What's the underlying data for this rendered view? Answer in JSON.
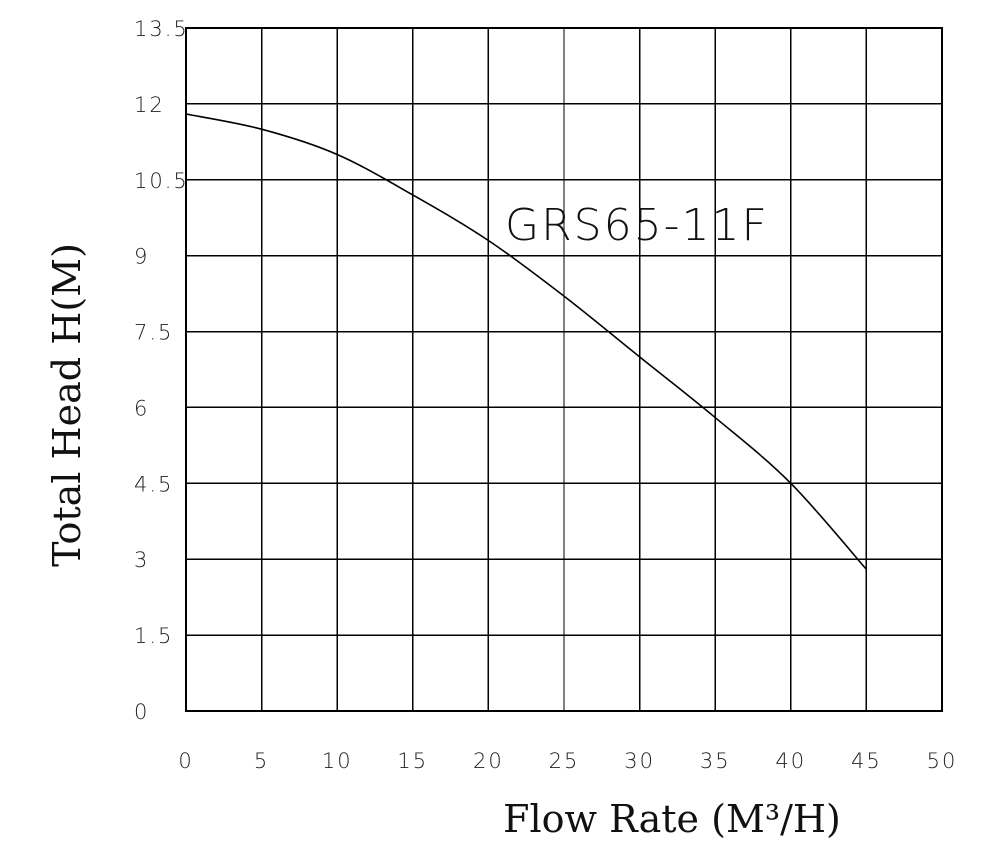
{
  "chart_data": {
    "type": "line",
    "title": "",
    "xlabel": "Flow Rate (M³/H)",
    "ylabel": "Total Head H(M)",
    "xlim": [
      0,
      50
    ],
    "ylim": [
      0,
      13.5
    ],
    "x_ticks": [
      "0",
      "5",
      "10",
      "15",
      "20",
      "25",
      "30",
      "35",
      "40",
      "45",
      "50"
    ],
    "y_ticks": [
      "0",
      "1.5",
      "3",
      "4.5",
      "6",
      "7.5",
      "9",
      "10.5",
      "12",
      "13.5"
    ],
    "grid": true,
    "legend": "none",
    "annotation": "GRS65-11F",
    "series": [
      {
        "x": [
          0,
          5,
          10,
          15,
          20,
          25,
          30,
          35,
          40,
          45
        ],
        "y": [
          11.8,
          11.5,
          11.0,
          10.2,
          9.3,
          8.2,
          7.0,
          5.8,
          4.5,
          2.8
        ]
      }
    ]
  }
}
